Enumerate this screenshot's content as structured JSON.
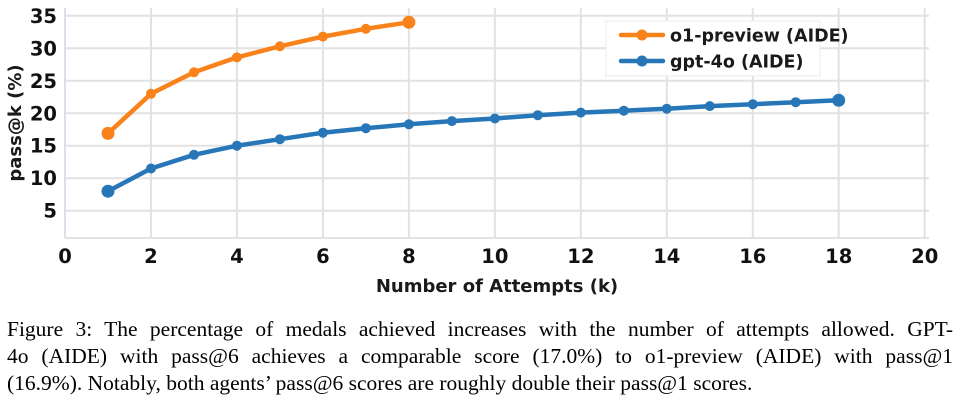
{
  "figure": {
    "caption_lines": [
      "Figure 3: The percentage of medals achieved increases with the number of attempts allowed. GPT-",
      "4o (AIDE) with pass@6 achieves a comparable score (17.0%) to o1-preview (AIDE) with pass@1",
      "(16.9%). Notably, both agents’ pass@6 scores are roughly double their pass@1 scores."
    ]
  },
  "chart_data": {
    "type": "line",
    "title": "",
    "xlabel": "Number of Attempts (k)",
    "ylabel": "pass@k (%)",
    "x_ticks": [
      0,
      2,
      4,
      6,
      8,
      10,
      12,
      14,
      16,
      18,
      20
    ],
    "y_ticks": [
      5,
      10,
      15,
      20,
      25,
      30,
      35
    ],
    "xlim": [
      0,
      20.1
    ],
    "ylim": [
      0.8,
      36.2
    ],
    "grid": true,
    "legend_position": "top-right",
    "series": [
      {
        "name": "o1-preview (AIDE)",
        "color": "#f9831a",
        "x": [
          1,
          2,
          3,
          4,
          5,
          6,
          7,
          8
        ],
        "values": [
          16.9,
          23.0,
          26.3,
          28.6,
          30.3,
          31.8,
          33.0,
          34.0
        ]
      },
      {
        "name": "gpt-4o (AIDE)",
        "color": "#2676b8",
        "x": [
          1,
          2,
          3,
          4,
          5,
          6,
          7,
          8,
          9,
          10,
          11,
          12,
          13,
          14,
          15,
          16,
          17,
          18
        ],
        "values": [
          8.0,
          11.5,
          13.6,
          15.0,
          16.0,
          17.0,
          17.7,
          18.3,
          18.8,
          19.2,
          19.7,
          20.1,
          20.4,
          20.7,
          21.1,
          21.4,
          21.7,
          22.0
        ]
      }
    ],
    "colors": {
      "background": "#ffffff",
      "grid": "#e2e2e2",
      "axis_line": "#d9e0ec",
      "tick_label": "#111111",
      "axis_title": "#1a1a1a",
      "legend_text": "#1a1a1a",
      "legend_bg": "#ffffff",
      "legend_border": "#ebebeb"
    }
  }
}
